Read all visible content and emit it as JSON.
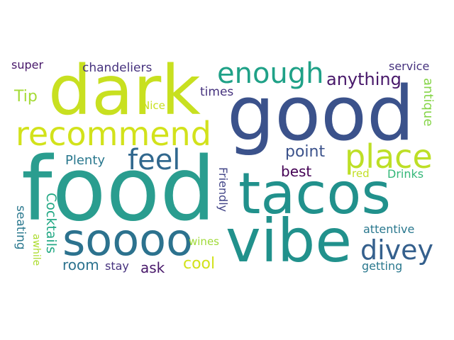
{
  "words": [
    {
      "text": "food",
      "color": "#2a9d8f"
    },
    {
      "text": "good",
      "color": "#3b528b"
    },
    {
      "text": "dark",
      "color": "#c8e020"
    },
    {
      "text": "vibe",
      "color": "#21918c"
    },
    {
      "text": "tacos",
      "color": "#21918c"
    },
    {
      "text": "soooo",
      "color": "#2c728e"
    },
    {
      "text": "recommend",
      "color": "#d2e21b"
    },
    {
      "text": "enough",
      "color": "#1fa187"
    },
    {
      "text": "place",
      "color": "#bddf26"
    },
    {
      "text": "feel",
      "color": "#31688e"
    },
    {
      "text": "divey",
      "color": "#35608d"
    },
    {
      "text": "anything",
      "color": "#48186a"
    },
    {
      "text": "point",
      "color": "#3b528b"
    },
    {
      "text": "best",
      "color": "#440154"
    },
    {
      "text": "Plenty",
      "color": "#2a788e"
    },
    {
      "text": "Tip",
      "color": "#a5db36"
    },
    {
      "text": "times",
      "color": "#46327e"
    },
    {
      "text": "Nice",
      "color": "#c8e020"
    },
    {
      "text": "chandeliers",
      "color": "#46327e"
    },
    {
      "text": "super",
      "color": "#48186a"
    },
    {
      "text": "service",
      "color": "#46327e"
    },
    {
      "text": "antique",
      "color": "#86d549"
    },
    {
      "text": "red",
      "color": "#c2df23"
    },
    {
      "text": "Drinks",
      "color": "#35b779"
    },
    {
      "text": "Friendly",
      "color": "#414487"
    },
    {
      "text": "Cocktails",
      "color": "#22a884"
    },
    {
      "text": "seating",
      "color": "#2a788e"
    },
    {
      "text": "awhile",
      "color": "#addc30"
    },
    {
      "text": "wines",
      "color": "#a0da39"
    },
    {
      "text": "attentive",
      "color": "#2a788e"
    },
    {
      "text": "getting",
      "color": "#2a788e"
    },
    {
      "text": "room",
      "color": "#2c728e"
    },
    {
      "text": "stay",
      "color": "#46327e"
    },
    {
      "text": "ask",
      "color": "#48186a"
    },
    {
      "text": "cool",
      "color": "#d2e21b"
    }
  ]
}
